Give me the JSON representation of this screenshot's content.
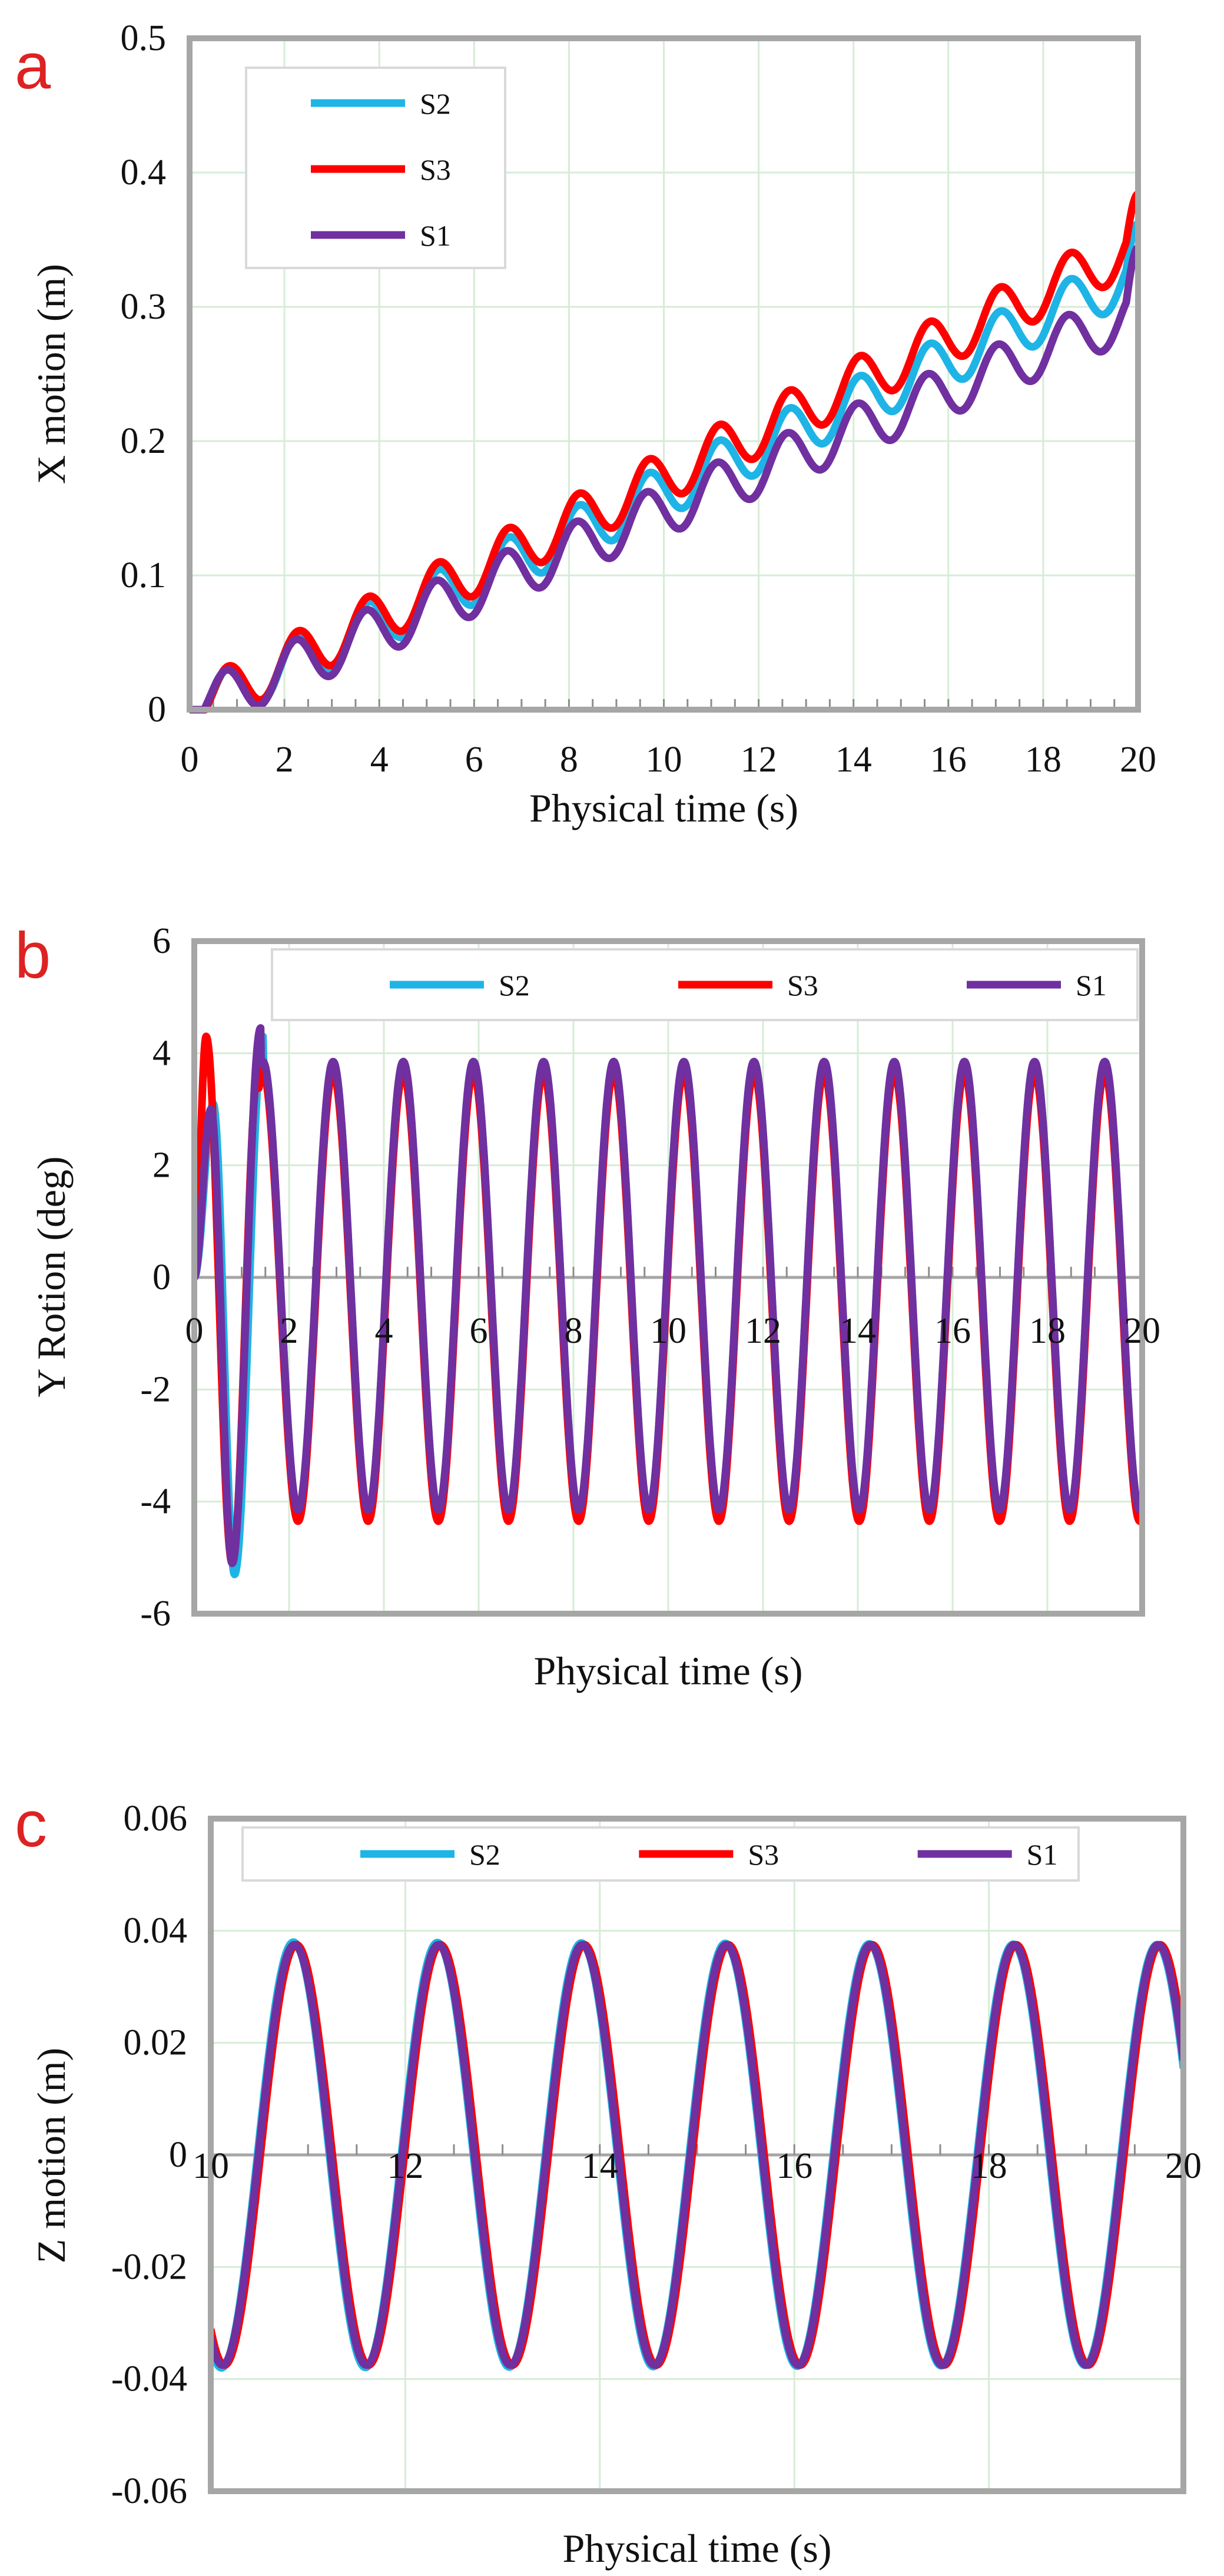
{
  "figure": {
    "panels": [
      "a",
      "b",
      "c"
    ]
  },
  "colors": {
    "S1": "#7030a0",
    "S2": "#1fb4e6",
    "S3": "#ff0000",
    "panel_letter": "#dd2222",
    "grid": "#d6ecd6",
    "frame": "#a6a6a6"
  },
  "chart_data": [
    {
      "id": "a",
      "type": "line",
      "panel_label": "a",
      "title": "",
      "xlabel": "Physical time  (s)",
      "ylabel": "X motion (m)",
      "xlim": [
        0,
        20
      ],
      "ylim": [
        0,
        0.5
      ],
      "x_ticks": [
        "0",
        "2",
        "4",
        "6",
        "8",
        "10",
        "12",
        "14",
        "16",
        "18",
        "20"
      ],
      "y_ticks": [
        "0",
        "0.1",
        "0.2",
        "0.3",
        "0.4",
        "0.5"
      ],
      "grid": true,
      "legend": {
        "placement": "top-left",
        "layout": "vertical",
        "entries": [
          "S2",
          "S3",
          "S1"
        ]
      },
      "series": [
        {
          "name": "S2",
          "color": "#1fb4e6",
          "model": {
            "kind": "drift-oscillation",
            "slope": 0.01625,
            "amplitude": 0.019,
            "period": 1.48,
            "peak_start": 0.8,
            "rise": 0.35,
            "final": 0.362,
            "end_drop": 0.025
          }
        },
        {
          "name": "S3",
          "color": "#ff0000",
          "model": {
            "kind": "drift-oscillation",
            "slope": 0.0173,
            "amplitude": 0.019,
            "period": 1.48,
            "peak_start": 0.8,
            "rise": 0.35,
            "final": 0.384,
            "end_drop": 0.025
          }
        },
        {
          "name": "S1",
          "color": "#7030a0",
          "model": {
            "kind": "drift-oscillation",
            "slope": 0.01485,
            "amplitude": 0.019,
            "period": 1.48,
            "peak_start": 0.75,
            "rise": 0.35,
            "final": 0.344,
            "end_drop": 0.027
          }
        }
      ]
    },
    {
      "id": "b",
      "type": "line",
      "panel_label": "b",
      "title": "",
      "xlabel": "Physical time  (s)",
      "ylabel": "Y Rotion (deg)",
      "xlim": [
        0,
        20
      ],
      "ylim": [
        -6,
        6
      ],
      "x_ticks": [
        "0",
        "2",
        "4",
        "6",
        "8",
        "10",
        "12",
        "14",
        "16",
        "18",
        "20"
      ],
      "y_ticks": [
        "-6",
        "-4",
        "-2",
        "0",
        "2",
        "4",
        "6"
      ],
      "grid": true,
      "legend": {
        "placement": "top",
        "layout": "horizontal",
        "entries": [
          "S2",
          "S3",
          "S1"
        ]
      },
      "series": [
        {
          "name": "S2",
          "color": "#1fb4e6",
          "model": {
            "kind": "oscillation",
            "amplitude": 4.0,
            "period": 1.48,
            "phase_peak": 1.45,
            "offset": -0.15,
            "transient": [
              [
                0,
                0
              ],
              [
                0.4,
                3.1
              ],
              [
                0.85,
                -5.3
              ],
              [
                1.45,
                4.3
              ]
            ]
          }
        },
        {
          "name": "S3",
          "color": "#ff0000",
          "model": {
            "kind": "oscillation",
            "amplitude": 4.0,
            "period": 1.48,
            "phase_peak": 1.45,
            "offset": -0.35,
            "transient": [
              [
                0,
                0
              ],
              [
                0.25,
                4.3
              ],
              [
                0.8,
                -5.1
              ],
              [
                1.35,
                3.7
              ]
            ]
          }
        },
        {
          "name": "S1",
          "color": "#7030a0",
          "model": {
            "kind": "oscillation",
            "amplitude": 4.0,
            "period": 1.48,
            "phase_peak": 1.45,
            "offset": -0.15,
            "transient": [
              [
                0,
                0
              ],
              [
                0.35,
                3.0
              ],
              [
                0.8,
                -5.1
              ],
              [
                1.4,
                4.45
              ]
            ]
          }
        }
      ]
    },
    {
      "id": "c",
      "type": "line",
      "panel_label": "c",
      "title": "",
      "xlabel": "Physical time  (s)",
      "ylabel": "Z motion  (m)",
      "xlim": [
        10,
        20
      ],
      "ylim": [
        -0.06,
        0.06
      ],
      "x_ticks": [
        "10",
        "12",
        "14",
        "16",
        "18",
        "20"
      ],
      "y_ticks": [
        "-0.06",
        "-0.04",
        "-0.02",
        "0",
        "0.02",
        "0.04",
        "0.06"
      ],
      "grid": true,
      "legend": {
        "placement": "top",
        "layout": "horizontal",
        "entries": [
          "S2",
          "S3",
          "S1"
        ]
      },
      "series": [
        {
          "name": "S2",
          "color": "#1fb4e6",
          "model": {
            "kind": "oscillation",
            "amplitude": 0.038,
            "period": 1.48,
            "phase_peak": 10.85,
            "offset": 0.0,
            "amp_end": 0.0375
          }
        },
        {
          "name": "S3",
          "color": "#ff0000",
          "model": {
            "kind": "oscillation",
            "amplitude": 0.0375,
            "period": 1.48,
            "phase_peak": 10.88,
            "offset": 0.0,
            "amp_end": 0.0375
          }
        },
        {
          "name": "S1",
          "color": "#7030a0",
          "model": {
            "kind": "oscillation",
            "amplitude": 0.0375,
            "period": 1.48,
            "phase_peak": 10.86,
            "offset": 0.0,
            "amp_end": 0.0375
          }
        }
      ]
    }
  ]
}
